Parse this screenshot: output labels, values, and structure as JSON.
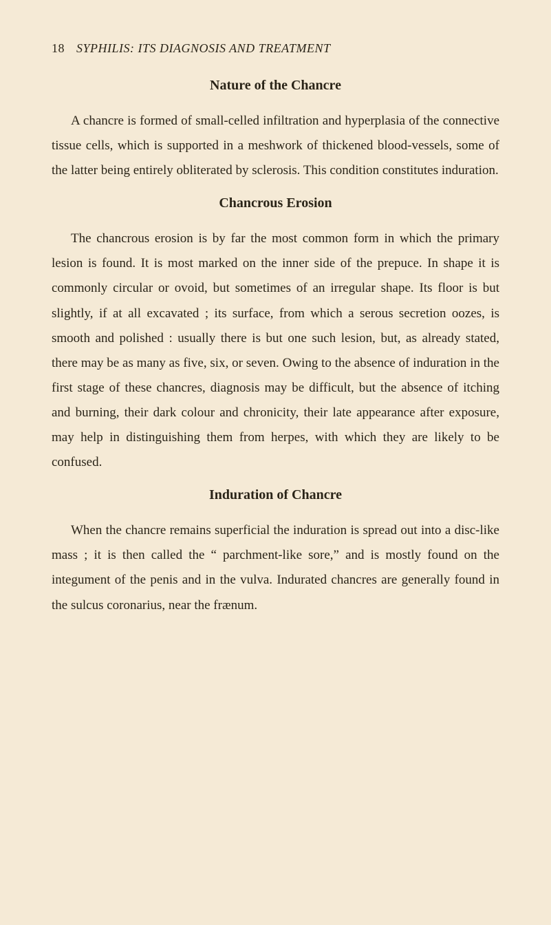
{
  "page": {
    "number": "18",
    "running_header": "SYPHILIS: ITS DIAGNOSIS AND TREATMENT"
  },
  "sections": [
    {
      "heading": "Nature of the Chancre",
      "paragraph": "A chancre is formed of small-celled infiltration and hyperplasia of the connective tissue cells, which is supported in a meshwork of thickened blood-vessels, some of the latter being entirely obliterated by sclerosis. This condition constitutes induration."
    },
    {
      "heading": "Chancrous Erosion",
      "paragraph": "The chancrous erosion is by far the most common form in which the primary lesion is found. It is most marked on the inner side of the prepuce. In shape it is commonly circular or ovoid, but sometimes of an irregular shape. Its floor is but slightly, if at all excavated ; its surface, from which a serous secretion oozes, is smooth and polished : usually there is but one such lesion, but, as already stated, there may be as many as five, six, or seven. Owing to the absence of induration in the first stage of these chancres, diagnosis may be difficult, but the absence of itching and burning, their dark colour and chronicity, their late appearance after exposure, may help in distinguishing them from herpes, with which they are likely to be confused."
    },
    {
      "heading": "Induration of Chancre",
      "paragraph": "When the chancre remains superficial the induration is spread out into a disc-like mass ; it is then called the “ parchment-like sore,” and is mostly found on the integument of the penis and in the vulva. Indurated chancres are generally found in the sulcus coronarius, near the frænum."
    }
  ],
  "style": {
    "background_color": "#f5ead6",
    "text_color": "#2a2418",
    "body_fontsize": 19,
    "heading_fontsize": 20,
    "header_fontsize": 18,
    "line_height": 1.9,
    "text_indent": 28
  }
}
